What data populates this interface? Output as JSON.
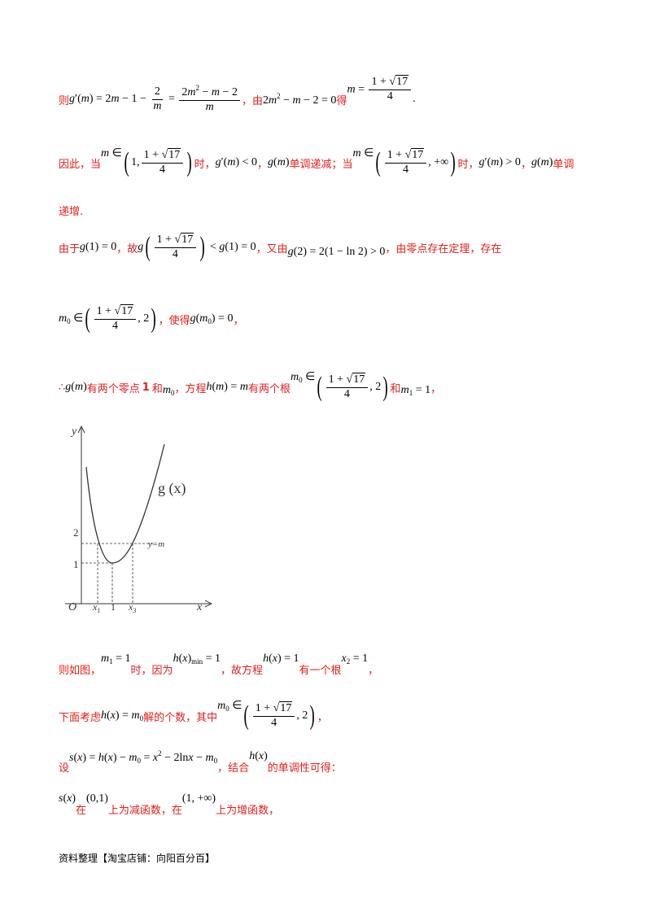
{
  "l1": {
    "prefix": "则",
    "mid": "，由",
    "end": "得"
  },
  "l2": {
    "p1": "因此，当",
    "p2": "时，",
    "p3": "，",
    "p4": "单调递减；当",
    "p5": "时，",
    "p6": "，",
    "p7": "单调"
  },
  "l3": {
    "text": "递增."
  },
  "l4": {
    "p1": "由于",
    "p2": "，故",
    "p3": "，又由",
    "p4": "，由零点存在定理，存在"
  },
  "l5": {
    "p1": "，使得",
    "p2": "，"
  },
  "l6": {
    "p1": "∴",
    "p2": "有两个零点",
    "one": "1",
    "p3": "和",
    "p4": "，方程",
    "p5": "有两个根",
    "p6": "和",
    "p7": "，"
  },
  "graph": {
    "y_label": "y",
    "x_label": "x",
    "origin": "O",
    "curve_label": "g (x)",
    "line_label": "y=m",
    "tick_y2": "2",
    "tick_y1": "1",
    "tick_x1": "x",
    "tick_x1_sub": "1",
    "tick_1": "1",
    "tick_x3": "x",
    "tick_x3_sub": "3"
  },
  "l7": {
    "p1": "则如图，",
    "p2": "时，因为",
    "p3": "，故方程",
    "p4": "有一个根",
    "p5": "，"
  },
  "l8": {
    "p1": "下面考虑",
    "p2": "解的个数，其中",
    "p3": "，"
  },
  "l9": {
    "p1": "设",
    "p2": "，结合",
    "p3": "的单调性可得："
  },
  "l10": {
    "p2": "在",
    "p3": "上为减函数，在",
    "p4": "上为增函数，"
  },
  "footer": {
    "text": "资料整理【淘宝店铺：向阳百分百】"
  },
  "colors": {
    "text_red": "#e0201c",
    "math": "#000000"
  }
}
